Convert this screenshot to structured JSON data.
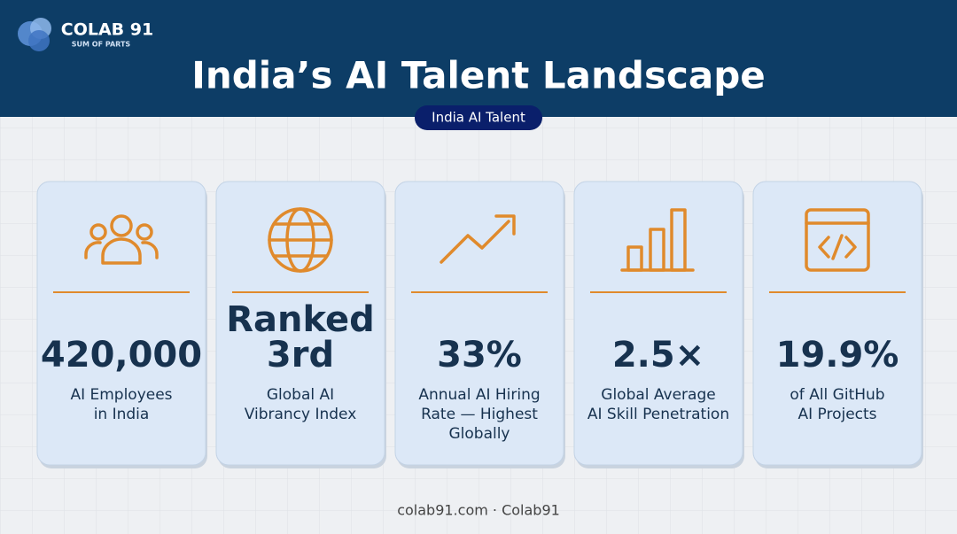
{
  "header": {
    "brand": "COLAB 91",
    "tagline": "SUM OF PARTS",
    "title": "India’s AI Talent Landscape",
    "badge": "India AI Talent"
  },
  "cards": [
    {
      "stat_lines": [
        "420,000"
      ],
      "label_lines": [
        "AI Employees",
        "in India"
      ]
    },
    {
      "stat_lines": [
        "Ranked",
        "3rd"
      ],
      "label_lines": [
        "Global AI",
        "Vibrancy Index"
      ]
    },
    {
      "stat_lines": [
        "33%"
      ],
      "label_lines": [
        "Annual AI Hiring",
        "Rate — Highest",
        "Globally"
      ]
    },
    {
      "stat_lines": [
        "2.5×"
      ],
      "label_lines": [
        "Global Average",
        "AI Skill Penetration"
      ]
    },
    {
      "stat_lines": [
        "19.9%"
      ],
      "label_lines": [
        "of All GitHub",
        "AI Projects"
      ]
    }
  ],
  "footer": "colab91.com · Colab91"
}
